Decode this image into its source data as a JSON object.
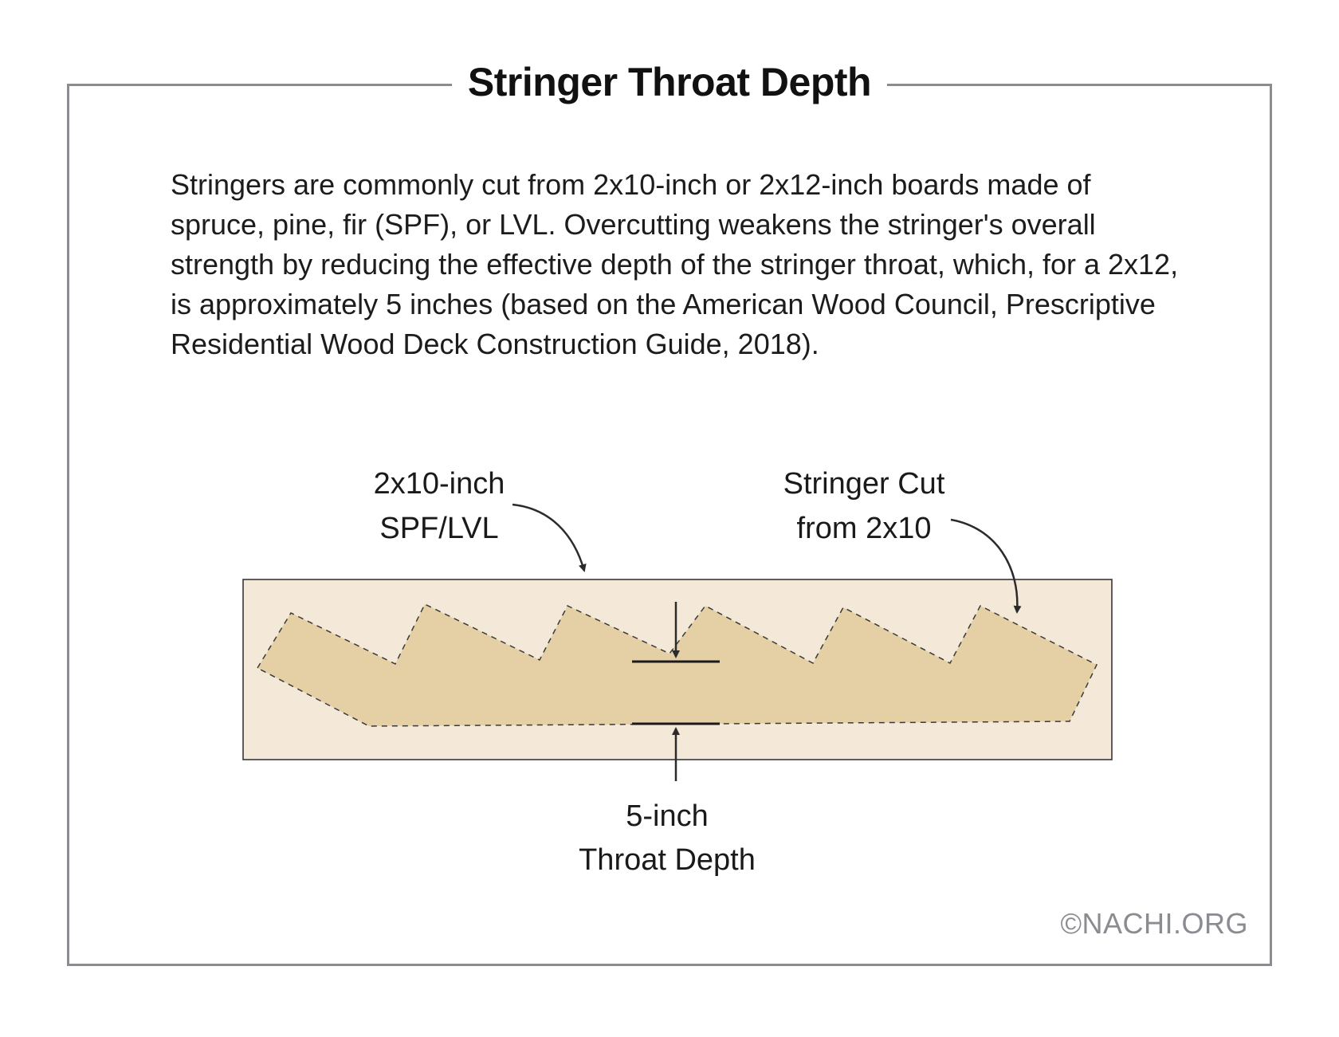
{
  "title": "Stringer Throat Depth",
  "paragraph": "Stringers are commonly cut from 2x10-inch or 2x12-inch boards made of spruce, pine, fir (SPF), or LVL. Overcutting weakens the stringer's overall strength by reducing the effective depth of the stringer throat, which, for a 2x12, is approximately 5 inches (based on the American Wood Council, Prescriptive Residential Wood Deck Construction Guide, 2018).",
  "labels": {
    "board_line1": "2x10-inch",
    "board_line2": "SPF/LVL",
    "cut_line1": "Stringer Cut",
    "cut_line2": "from 2x10",
    "throat_line1": "5-inch",
    "throat_line2": "Throat Depth"
  },
  "copyright": "©NACHI.ORG",
  "colors": {
    "board_fill": "#f4e9d8",
    "stringer_fill": "#e5d0a6",
    "frame": "#8a8c92",
    "ink": "#1a1a1a"
  }
}
